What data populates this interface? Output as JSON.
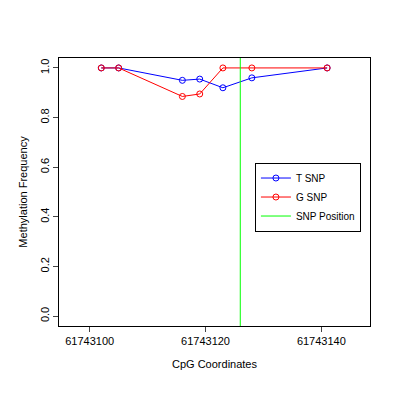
{
  "chart_data": {
    "type": "line",
    "x_label": "CpG Coordinates",
    "y_label": "Methylation Frequency",
    "x": [
      61743102,
      61743105,
      61743116,
      61743119,
      61743123,
      61743128,
      61743141
    ],
    "series": [
      {
        "name": "T SNP",
        "color": "#0000ff",
        "values": [
          1.0,
          1.0,
          0.95,
          0.955,
          0.92,
          0.96,
          1.0
        ]
      },
      {
        "name": "G SNP",
        "color": "#ff0000",
        "values": [
          1.0,
          1.0,
          0.885,
          0.895,
          1.0,
          1.0,
          1.0
        ]
      }
    ],
    "vline": {
      "name": "SNP Position",
      "color": "#00ff00",
      "x": 61743126
    },
    "marker": "circle-open",
    "xlim": [
      61743094.7,
      61743148.4
    ],
    "xticks": [
      61743100,
      61743120,
      61743140
    ],
    "ylim": [
      -0.04,
      1.04
    ],
    "yticks": [
      {
        "value": 0,
        "label": "0.0"
      },
      0.2,
      0.4,
      0.6,
      0.8,
      {
        "value": 1,
        "label": "1.0"
      }
    ],
    "grid": false,
    "legend": "right"
  }
}
